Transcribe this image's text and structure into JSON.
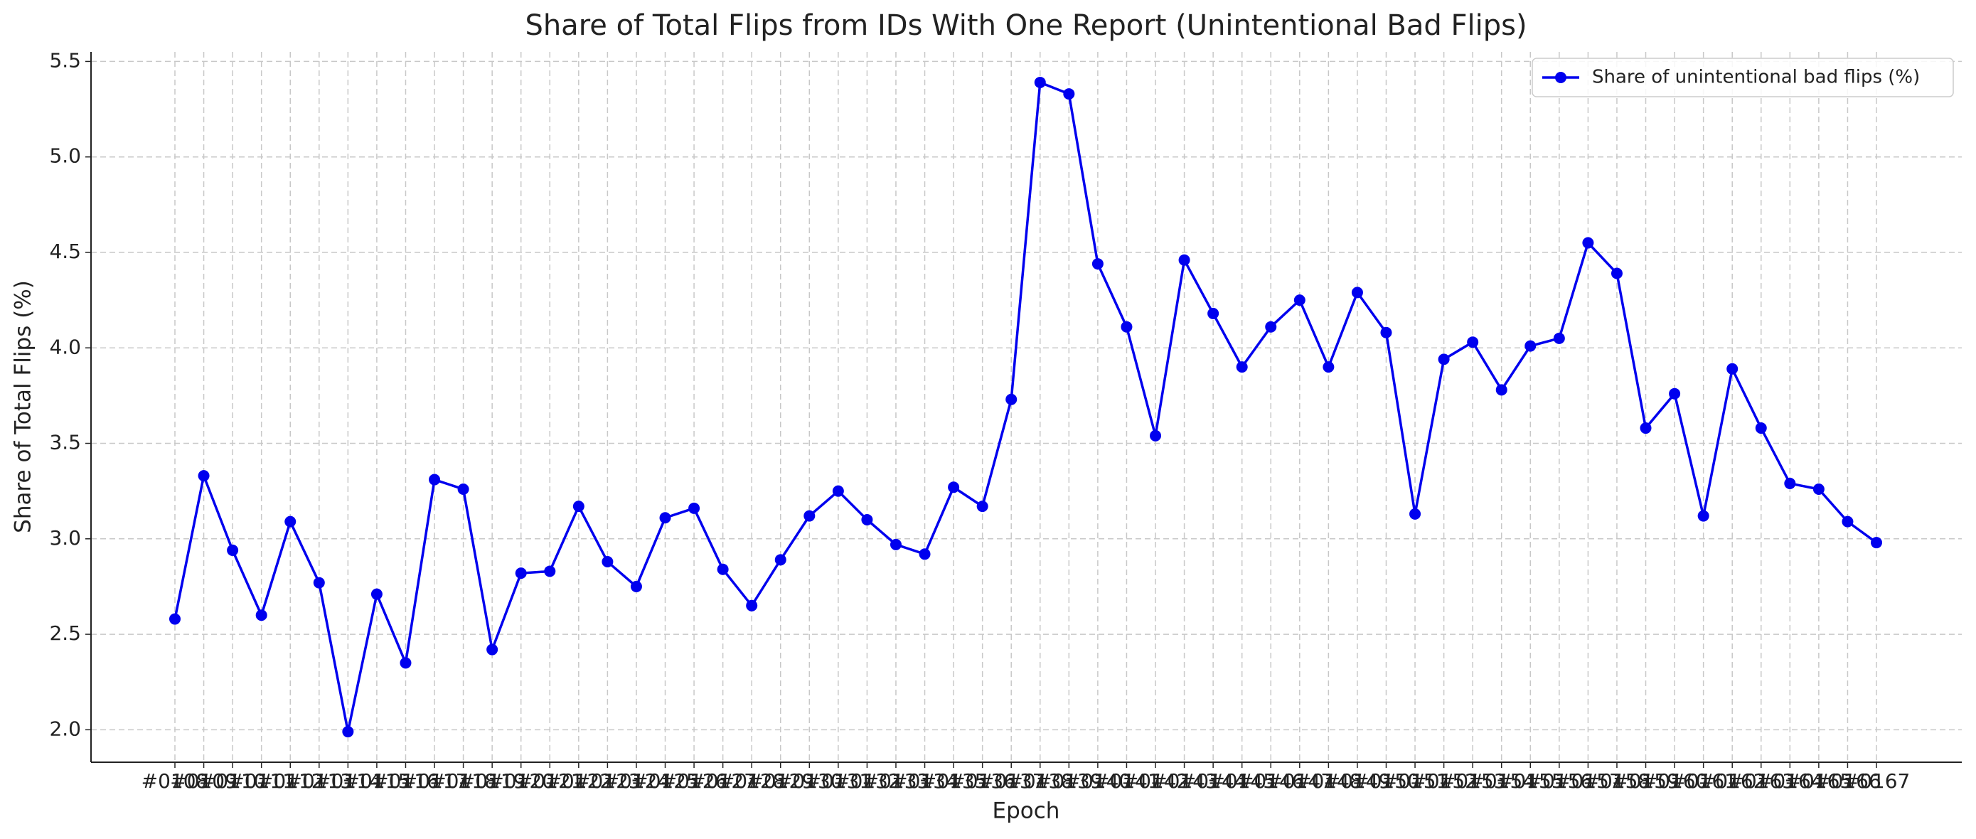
{
  "chart_data": {
    "type": "line",
    "title": "Share of Total Flips from IDs With One Report (Unintentional Bad Flips)",
    "x_label": "Epoch",
    "y_label": "Share of Total Flips (%)",
    "categories": [
      "#0108",
      "#0109",
      "#0110",
      "#0111",
      "#0112",
      "#0113",
      "#0114",
      "#0115",
      "#0116",
      "#0117",
      "#0118",
      "#0119",
      "#0120",
      "#0121",
      "#0122",
      "#0123",
      "#0124",
      "#0125",
      "#0126",
      "#0127",
      "#0128",
      "#0129",
      "#0130",
      "#0131",
      "#0132",
      "#0133",
      "#0134",
      "#0135",
      "#0136",
      "#0137",
      "#0138",
      "#0139",
      "#0140",
      "#0141",
      "#0142",
      "#0143",
      "#0144",
      "#0145",
      "#0146",
      "#0147",
      "#0148",
      "#0149",
      "#0150",
      "#0151",
      "#0152",
      "#0153",
      "#0154",
      "#0155",
      "#0156",
      "#0157",
      "#0158",
      "#0159",
      "#0160",
      "#0161",
      "#0162",
      "#0163",
      "#0164",
      "#0165",
      "#0166",
      "#0167"
    ],
    "series": [
      {
        "name": "Share of unintentional bad flips (%)",
        "color": "#0000ee",
        "values": [
          2.58,
          3.33,
          2.94,
          2.6,
          3.09,
          2.77,
          1.99,
          2.71,
          2.35,
          3.31,
          3.26,
          2.42,
          2.82,
          2.83,
          3.17,
          2.88,
          2.75,
          3.11,
          3.16,
          2.84,
          2.65,
          2.89,
          3.12,
          3.25,
          3.1,
          2.97,
          2.92,
          3.27,
          3.17,
          3.73,
          5.39,
          5.33,
          4.44,
          4.11,
          3.54,
          4.46,
          4.18,
          3.9,
          4.11,
          4.25,
          3.9,
          4.29,
          4.08,
          3.13,
          3.94,
          4.03,
          3.78,
          4.01,
          4.05,
          4.55,
          4.39,
          3.58,
          3.76,
          3.12,
          3.89,
          3.58,
          3.29,
          3.26,
          3.09,
          2.98
        ]
      }
    ],
    "ylim": [
      1.83,
      5.55
    ],
    "yticks": [
      {
        "value": 2,
        "label": "2.0"
      },
      2.5,
      {
        "value": 3,
        "label": "3.0"
      },
      3.5,
      {
        "value": 4,
        "label": "4.0"
      },
      4.5,
      {
        "value": 5,
        "label": "5.0"
      },
      5.5
    ],
    "grid": true,
    "legend": "upper right"
  }
}
